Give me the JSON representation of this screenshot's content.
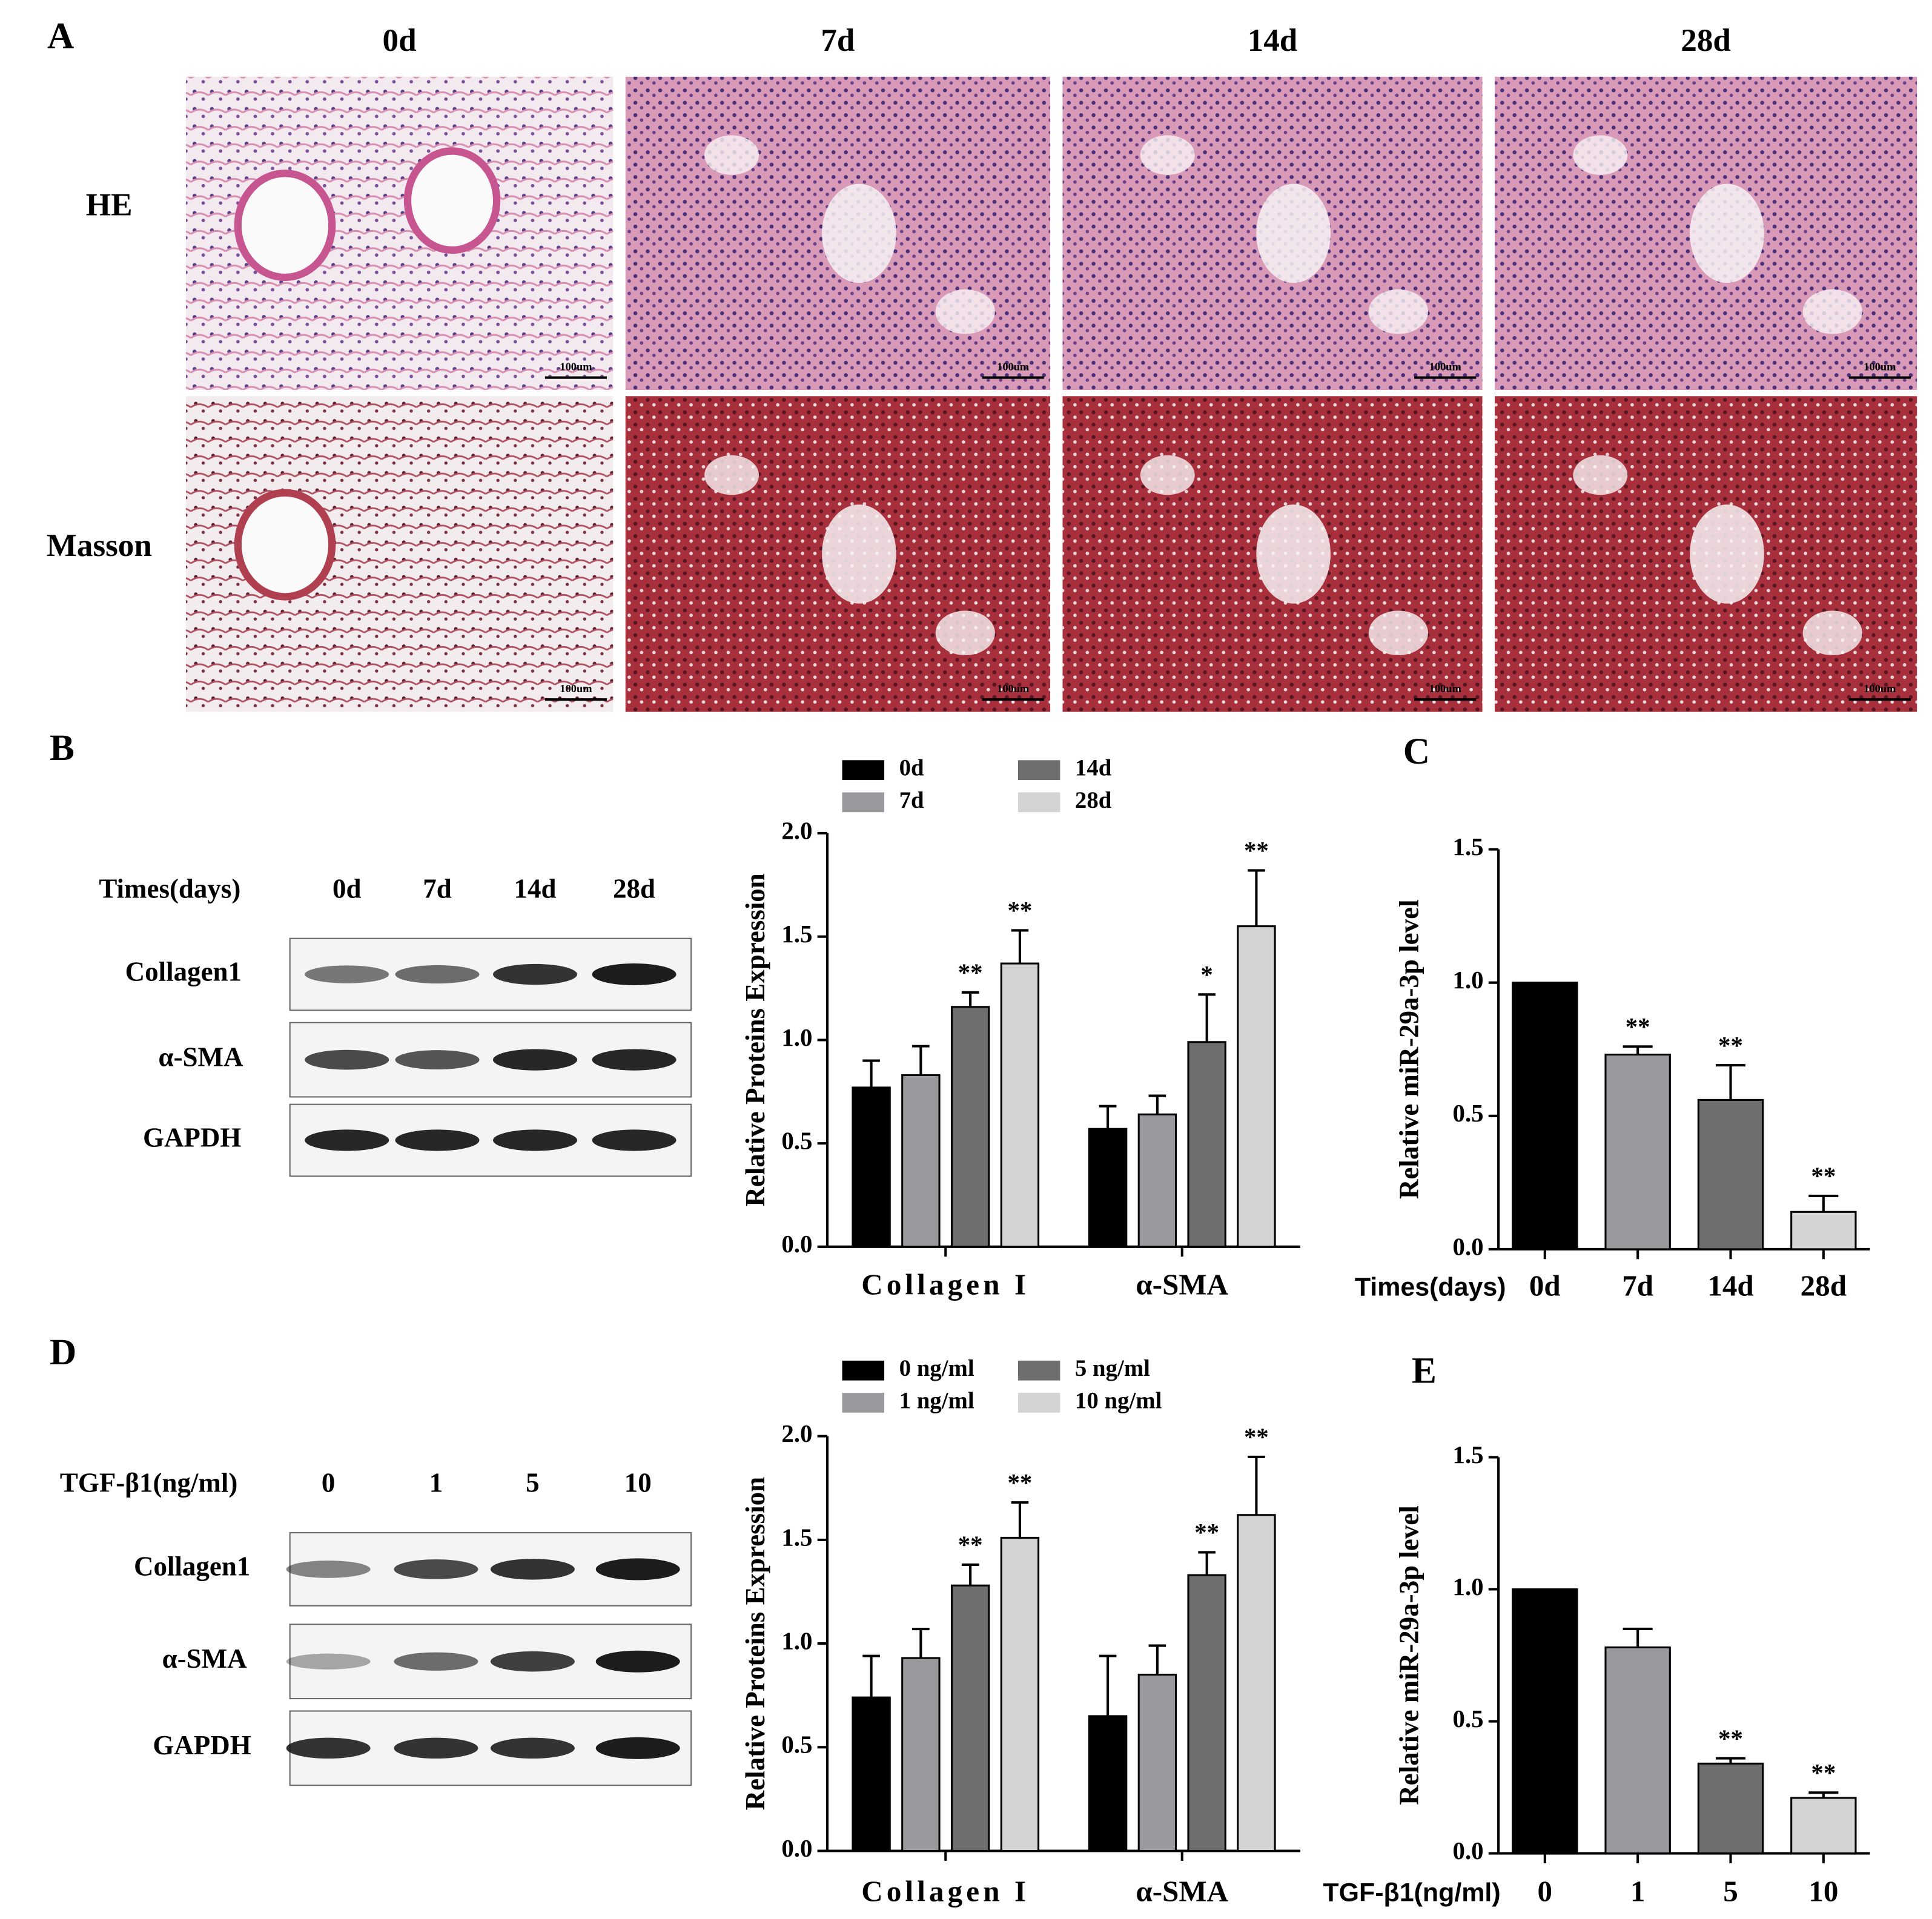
{
  "figure": {
    "panel_labels": [
      "A",
      "B",
      "C",
      "D",
      "E"
    ],
    "histology": {
      "columns": [
        "0d",
        "7d",
        "14d",
        "28d"
      ],
      "rows": [
        "HE",
        "Masson"
      ],
      "scale_bar": "100um"
    },
    "blots": [
      {
        "header": "Times(days)",
        "lanes": [
          "0d",
          "7d",
          "14d",
          "28d"
        ],
        "rows": [
          "Collagen1",
          "α-SMA",
          "GAPDH"
        ]
      },
      {
        "header": "TGF-β1(ng/ml)",
        "lanes": [
          "0",
          "1",
          "5",
          "10"
        ],
        "rows": [
          "Collagen1",
          "α-SMA",
          "GAPDH"
        ]
      }
    ]
  },
  "chart_data": [
    {
      "type": "grouped_bar",
      "ylabel": "Relative Proteins Expression",
      "categories": [
        "Collagen I",
        "α-SMA"
      ],
      "series": [
        {
          "name": "0d",
          "color": "#000000",
          "values": [
            0.77,
            0.57
          ],
          "errors": [
            0.13,
            0.11
          ],
          "annotations": [
            null,
            null
          ]
        },
        {
          "name": "7d",
          "color": "#9a9a9e",
          "values": [
            0.83,
            0.64
          ],
          "errors": [
            0.14,
            0.09
          ],
          "annotations": [
            null,
            null
          ]
        },
        {
          "name": "14d",
          "color": "#6e6e6e",
          "values": [
            1.16,
            0.99
          ],
          "errors": [
            0.07,
            0.23
          ],
          "annotations": [
            "**",
            "*"
          ]
        },
        {
          "name": "28d",
          "color": "#d3d3d3",
          "values": [
            1.37,
            1.55
          ],
          "errors": [
            0.16,
            0.27
          ],
          "annotations": [
            "**",
            "**"
          ]
        }
      ],
      "ylim": [
        0,
        2
      ],
      "yticks": [
        {
          "value": 0,
          "label": "0.0"
        },
        0.5,
        {
          "value": 1,
          "label": "1.0"
        },
        1.5,
        {
          "value": 2,
          "label": "2.0"
        }
      ],
      "legend": "top"
    },
    {
      "type": "bar",
      "xlabel": "Times(days)",
      "ylabel": "Relative miR-29a-3p level",
      "categories": [
        "0d",
        "7d",
        "14d",
        "28d"
      ],
      "values": [
        1.0,
        0.73,
        0.56,
        0.14
      ],
      "errors": [
        0,
        0.03,
        0.13,
        0.06
      ],
      "annotations": [
        null,
        "**",
        "**",
        "**"
      ],
      "colors": [
        "#000000",
        "#9a9a9e",
        "#6e6e6e",
        "#d3d3d3"
      ],
      "ylim": [
        0,
        1.5
      ],
      "yticks": [
        {
          "value": 0,
          "label": "0.0"
        },
        0.5,
        {
          "value": 1,
          "label": "1.0"
        },
        1.5
      ]
    },
    {
      "type": "grouped_bar",
      "ylabel": "Relative Proteins Expression",
      "categories": [
        "Collagen I",
        "α-SMA"
      ],
      "series": [
        {
          "name": "0 ng/ml",
          "color": "#000000",
          "values": [
            0.74,
            0.65
          ],
          "errors": [
            0.2,
            0.29
          ],
          "annotations": [
            null,
            null
          ]
        },
        {
          "name": "1 ng/ml",
          "color": "#9a9a9e",
          "values": [
            0.93,
            0.85
          ],
          "errors": [
            0.14,
            0.14
          ],
          "annotations": [
            null,
            null
          ]
        },
        {
          "name": "5 ng/ml",
          "color": "#6e6e6e",
          "values": [
            1.28,
            1.33
          ],
          "errors": [
            0.1,
            0.11
          ],
          "annotations": [
            "**",
            "**"
          ]
        },
        {
          "name": "10 ng/ml",
          "color": "#d3d3d3",
          "values": [
            1.51,
            1.62
          ],
          "errors": [
            0.17,
            0.28
          ],
          "annotations": [
            "**",
            "**"
          ]
        }
      ],
      "ylim": [
        0,
        2
      ],
      "yticks": [
        {
          "value": 0,
          "label": "0.0"
        },
        0.5,
        {
          "value": 1,
          "label": "1.0"
        },
        1.5,
        {
          "value": 2,
          "label": "2.0"
        }
      ],
      "legend": "top"
    },
    {
      "type": "bar",
      "xlabel": "TGF-β1(ng/ml)",
      "ylabel": "Relative miR-29a-3p level",
      "categories": [
        "0",
        "1",
        "5",
        "10"
      ],
      "values": [
        1.0,
        0.78,
        0.34,
        0.21
      ],
      "errors": [
        0,
        0.07,
        0.02,
        0.02
      ],
      "annotations": [
        null,
        null,
        "**",
        "**"
      ],
      "colors": [
        "#000000",
        "#9a9a9e",
        "#6e6e6e",
        "#d3d3d3"
      ],
      "ylim": [
        0,
        1.5
      ],
      "yticks": [
        {
          "value": 0,
          "label": "0.0"
        },
        0.5,
        {
          "value": 1,
          "label": "1.0"
        },
        1.5
      ]
    }
  ]
}
